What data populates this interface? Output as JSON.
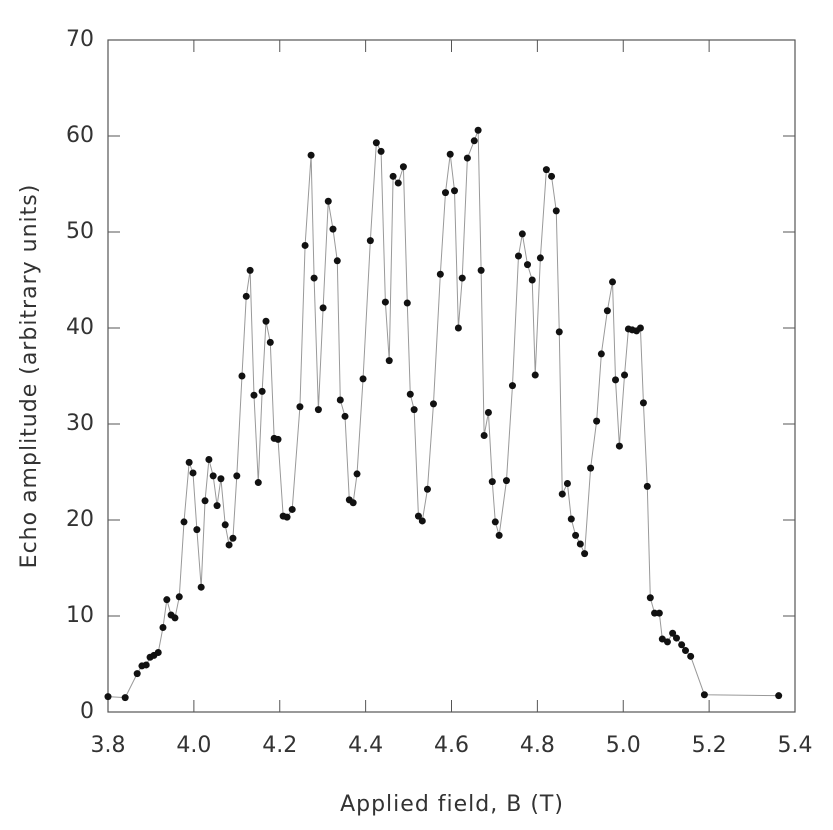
{
  "chart_data": {
    "type": "line",
    "xlabel": "Applied field, B (T)",
    "ylabel": "Echo amplitude (arbitrary units)",
    "xlim": [
      3.8,
      5.4
    ],
    "xticks": [
      3.8,
      {
        "value": 4,
        "label": "4.0"
      },
      4.2,
      4.4,
      4.6,
      4.8,
      {
        "value": 5,
        "label": "5.0"
      },
      5.2,
      5.4
    ],
    "ylim": [
      0,
      70
    ],
    "yticks": [
      0,
      10,
      20,
      30,
      40,
      50,
      60,
      70
    ],
    "series": [
      {
        "color": "#111111",
        "x": [
          3.8,
          3.84,
          3.868,
          3.879,
          3.889,
          3.898,
          3.907,
          3.917,
          3.928,
          3.937,
          3.947,
          3.956,
          3.966,
          3.977,
          3.989,
          3.998,
          4.007,
          4.017,
          4.026,
          4.035,
          4.045,
          4.054,
          4.063,
          4.073,
          4.082,
          4.091,
          4.1,
          4.112,
          4.122,
          4.131,
          4.14,
          4.15,
          4.159,
          4.168,
          4.178,
          4.187,
          4.196,
          4.208,
          4.217,
          4.229,
          4.247,
          4.259,
          4.273,
          4.28,
          4.29,
          4.301,
          4.313,
          4.324,
          4.334,
          4.341,
          4.352,
          4.362,
          4.371,
          4.38,
          4.394,
          4.411,
          4.425,
          4.436,
          4.446,
          4.455,
          4.464,
          4.476,
          4.488,
          4.497,
          4.504,
          4.513,
          4.523,
          4.532,
          4.544,
          4.558,
          4.574,
          4.586,
          4.597,
          4.607,
          4.616,
          4.625,
          4.637,
          4.653,
          4.662,
          4.669,
          4.676,
          4.686,
          4.695,
          4.702,
          4.711,
          4.728,
          4.742,
          4.756,
          4.765,
          4.777,
          4.788,
          4.795,
          4.807,
          4.821,
          4.833,
          4.844,
          4.851,
          4.858,
          4.87,
          4.879,
          4.889,
          4.9,
          4.91,
          4.924,
          4.938,
          4.949,
          4.963,
          4.975,
          4.982,
          4.991,
          5.003,
          5.012,
          5.021,
          5.031,
          5.04,
          5.047,
          5.056,
          5.063,
          5.073,
          5.084,
          5.091,
          5.103,
          5.115,
          5.124,
          5.136,
          5.145,
          5.157,
          5.189,
          5.362
        ],
        "values": [
          1.6,
          1.5,
          4.0,
          4.8,
          4.9,
          5.7,
          5.9,
          6.2,
          8.8,
          11.7,
          10.1,
          9.8,
          12.0,
          19.8,
          26.0,
          24.9,
          19.0,
          13.0,
          22.0,
          26.3,
          24.6,
          21.5,
          24.3,
          19.5,
          17.4,
          18.1,
          24.6,
          35.0,
          43.3,
          46.0,
          33.0,
          23.9,
          33.4,
          40.7,
          38.5,
          28.5,
          28.4,
          20.4,
          20.3,
          21.1,
          31.8,
          48.6,
          58.0,
          45.2,
          31.5,
          42.1,
          53.2,
          50.3,
          47.0,
          32.5,
          30.8,
          22.1,
          21.8,
          24.8,
          34.7,
          49.1,
          59.3,
          58.4,
          42.7,
          36.6,
          55.8,
          55.1,
          56.8,
          42.6,
          33.1,
          31.5,
          20.4,
          19.9,
          23.2,
          32.1,
          45.6,
          54.1,
          58.1,
          54.3,
          40.0,
          45.2,
          57.7,
          59.5,
          60.6,
          46.0,
          28.8,
          31.2,
          24.0,
          19.8,
          18.4,
          24.1,
          34.0,
          47.5,
          49.8,
          46.6,
          45.0,
          35.1,
          47.3,
          56.5,
          55.8,
          52.2,
          39.6,
          22.7,
          23.8,
          20.1,
          18.4,
          17.5,
          16.5,
          25.4,
          30.3,
          37.3,
          41.8,
          44.8,
          34.6,
          27.7,
          35.1,
          39.9,
          39.8,
          39.7,
          40.0,
          32.2,
          23.5,
          11.9,
          10.3,
          10.3,
          7.6,
          7.3,
          8.2,
          7.7,
          7.0,
          6.4,
          5.8,
          1.8,
          1.7
        ]
      }
    ]
  }
}
